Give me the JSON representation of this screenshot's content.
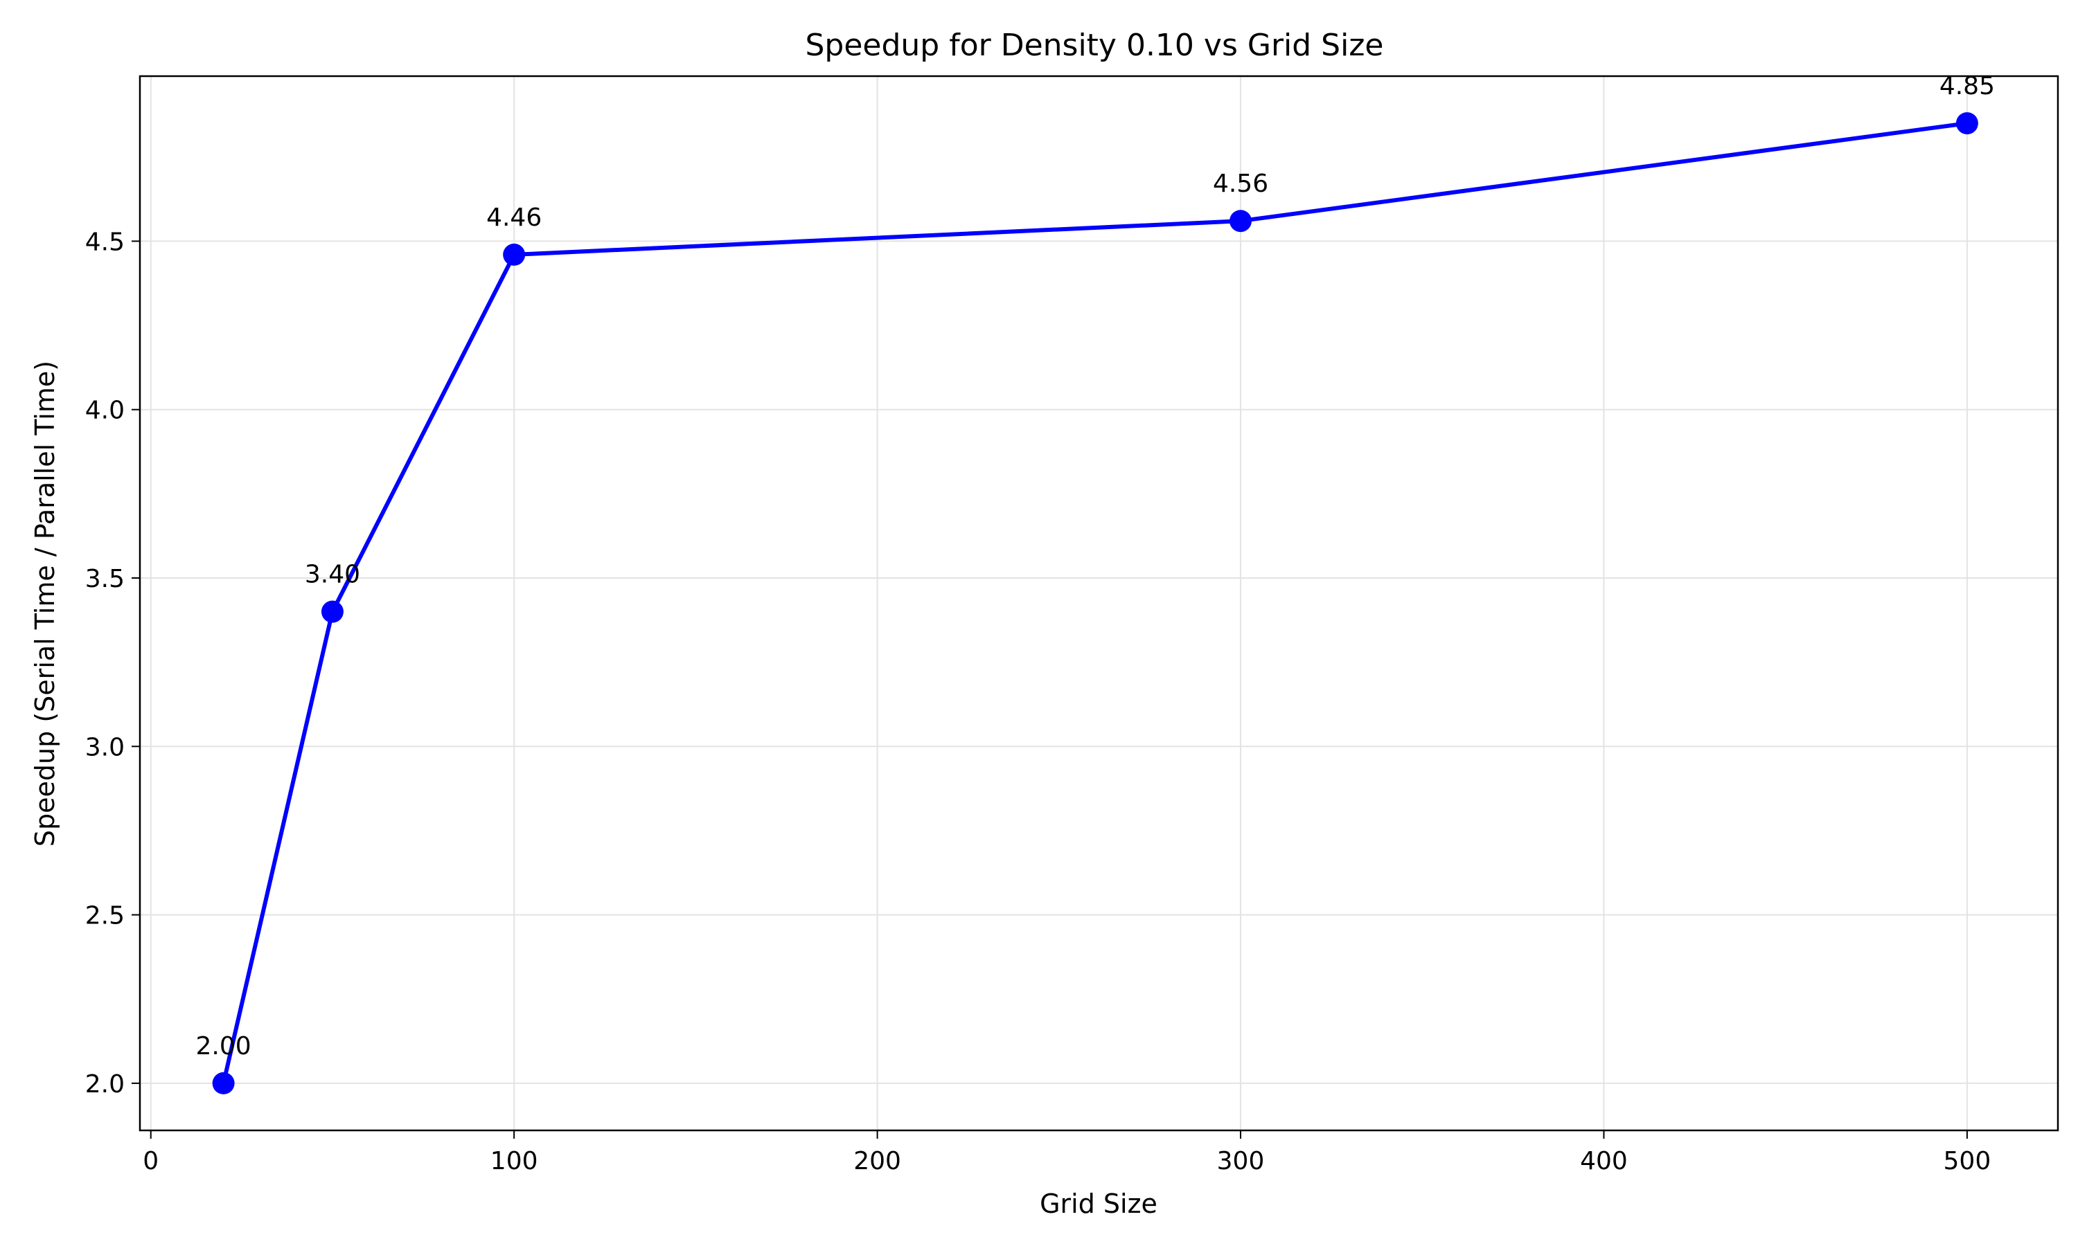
{
  "chart_data": {
    "type": "line",
    "title": "Speedup for Density 0.10 vs Grid Size",
    "xlabel": "Grid Size",
    "ylabel": "Speedup (Serial Time / Parallel Time)",
    "xlim": [
      -3,
      525
    ],
    "ylim": [
      1.86,
      4.99
    ],
    "x_ticks": [
      0,
      100,
      200,
      300,
      400,
      500
    ],
    "x_tick_labels": [
      "0",
      "100",
      "200",
      "300",
      "400",
      "500"
    ],
    "y_ticks": [
      2.0,
      2.5,
      3.0,
      3.5,
      4.0,
      4.5
    ],
    "y_tick_labels": [
      "2.0",
      "2.5",
      "3.0",
      "3.5",
      "4.0",
      "4.5"
    ],
    "grid": true,
    "series": [
      {
        "x": [
          20,
          50,
          100,
          300,
          500
        ],
        "y": [
          2.0,
          3.4,
          4.46,
          4.56,
          4.85
        ],
        "data_labels": [
          "2.00",
          "3.40",
          "4.46",
          "4.56",
          "4.85"
        ],
        "color": "#0000ff",
        "marker": "circle"
      }
    ]
  }
}
